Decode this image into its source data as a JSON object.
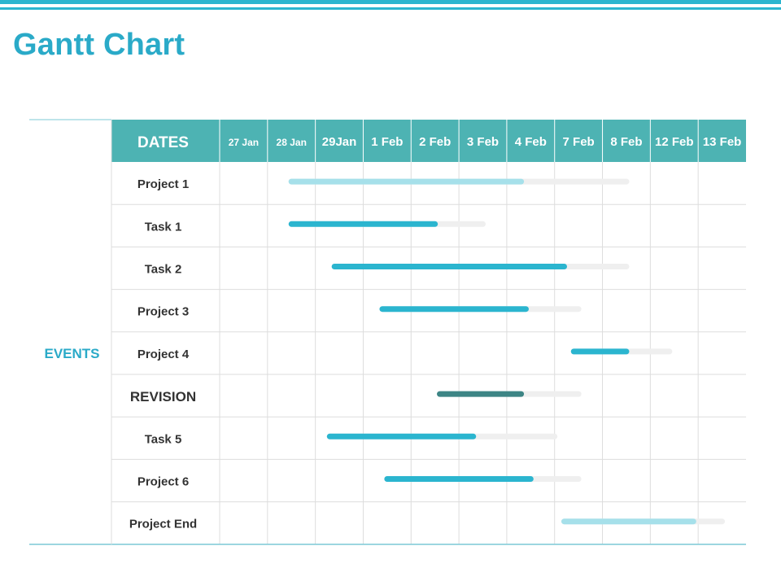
{
  "title": "Gantt Chart",
  "colors": {
    "accent": "#2aaac8",
    "header_bg": "#4db3b3",
    "bar_main": "#2bb5cf",
    "bar_light": "#a6e0ea",
    "bar_dark": "#3d8585",
    "bar_track": "#efefef"
  },
  "chart_data": {
    "type": "gantt",
    "title": "Gantt Chart",
    "row_group_label": "EVENTS",
    "header_label": "DATES",
    "dates": [
      "27 Jan",
      "28 Jan",
      "29Jan",
      "1 Feb",
      "2 Feb",
      "3 Feb",
      "4 Feb",
      "7 Feb",
      "8 Feb",
      "12 Feb",
      "13 Feb"
    ],
    "rows": [
      {
        "name": "Project 1",
        "start": 1.5,
        "end": 6.3,
        "track_end": 8.5,
        "style": "light"
      },
      {
        "name": "Task 1",
        "start": 1.5,
        "end": 4.5,
        "track_end": 5.5,
        "style": "main"
      },
      {
        "name": "Task 2",
        "start": 2.4,
        "end": 7.2,
        "track_end": 8.5,
        "style": "main"
      },
      {
        "name": "Project 3",
        "start": 3.4,
        "end": 6.4,
        "track_end": 7.5,
        "style": "main"
      },
      {
        "name": "Project 4",
        "start": 7.4,
        "end": 8.5,
        "track_end": 9.4,
        "style": "main"
      },
      {
        "name": "REVISION",
        "start": 4.6,
        "end": 6.3,
        "track_end": 7.5,
        "style": "dark"
      },
      {
        "name": "Task 5",
        "start": 2.3,
        "end": 5.3,
        "track_end": 7.0,
        "style": "main"
      },
      {
        "name": "Project 6",
        "start": 3.5,
        "end": 6.5,
        "track_end": 7.5,
        "style": "main"
      },
      {
        "name": "Project End",
        "start": 7.2,
        "end": 9.9,
        "track_end": 10.5,
        "style": "light"
      }
    ]
  }
}
